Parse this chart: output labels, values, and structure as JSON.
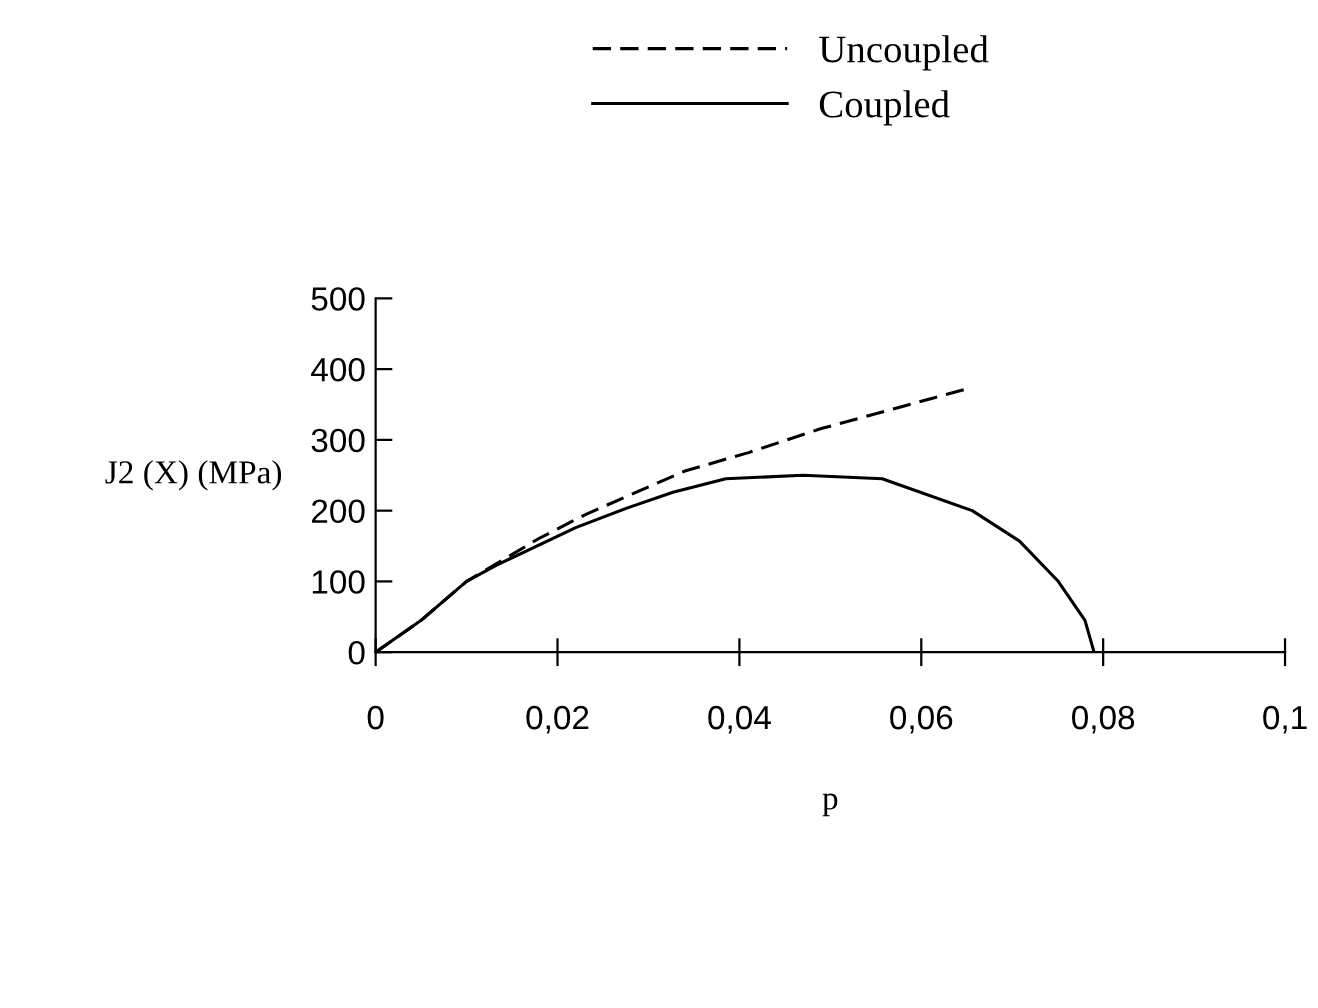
{
  "chart_data": {
    "type": "line",
    "xlabel": "p",
    "ylabel": "J2 (X) (MPa)",
    "xlim": [
      0,
      0.1
    ],
    "ylim": [
      0,
      500
    ],
    "xticks": [
      0,
      {
        "value": 0.02,
        "label": "0,02"
      },
      {
        "value": 0.04,
        "label": "0,04"
      },
      {
        "value": 0.06,
        "label": "0,06"
      },
      {
        "value": 0.08,
        "label": "0,08"
      },
      {
        "value": 0.1,
        "label": "0,1"
      }
    ],
    "yticks": [
      0,
      100,
      200,
      300,
      400,
      500
    ],
    "grid": false,
    "legend": "top",
    "marker": "none",
    "series": [
      {
        "name": "Uncoupled",
        "color": "#000000",
        "line_style": "dashed",
        "x": [
          0,
          0.005,
          0.01,
          0.018,
          0.023,
          0.029,
          0.034,
          0.041,
          0.049,
          0.057,
          0.065
        ],
        "values": [
          0,
          45,
          100,
          161,
          194,
          228,
          256,
          282,
          316,
          344,
          372
        ]
      },
      {
        "name": "Coupled",
        "color": "#000000",
        "line_style": "solid",
        "x": [
          0,
          0.005,
          0.01,
          0.0133,
          0.022,
          0.0277,
          0.0327,
          0.0385,
          0.047,
          0.0557,
          0.0656,
          0.0708,
          0.075,
          0.078,
          0.079
        ],
        "values": [
          0,
          45,
          100,
          123,
          176,
          204,
          226,
          245,
          250,
          245,
          200,
          157,
          101,
          45,
          0
        ]
      }
    ]
  }
}
